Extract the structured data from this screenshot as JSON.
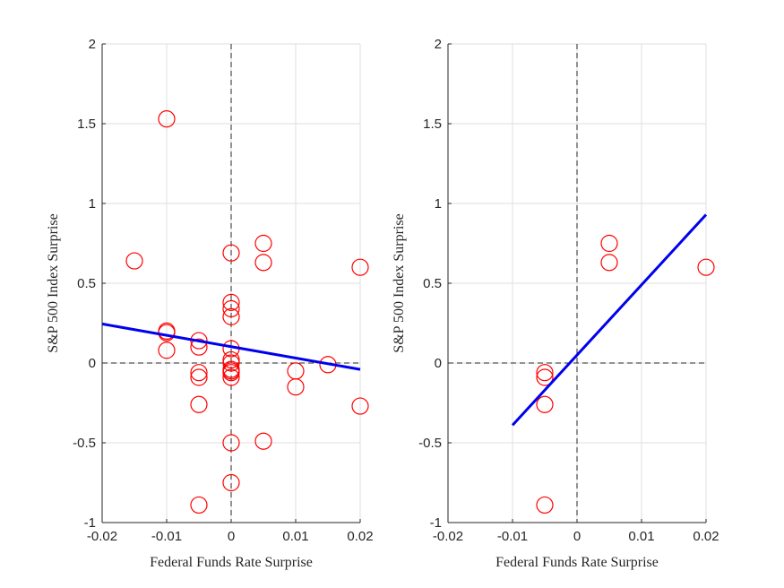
{
  "chart_data": [
    {
      "type": "scatter",
      "xlabel": "Federal Funds Rate Surprise",
      "ylabel": "S&P 500 Index Surprise",
      "xlim": [
        -0.02,
        0.02
      ],
      "ylim": [
        -1,
        2
      ],
      "xticks": [
        -0.02,
        -0.01,
        0,
        0.01,
        0.02
      ],
      "xtick_labels": [
        "-0.02",
        "-0.01",
        "0",
        "0.01",
        "0.02"
      ],
      "yticks": [
        -1,
        -0.5,
        0,
        0.5,
        1,
        1.5,
        2
      ],
      "ytick_labels": [
        "-1",
        "-0.5",
        "0",
        "0.5",
        "1",
        "1.5",
        "2"
      ],
      "grid": true,
      "zero_lines": true,
      "series": [
        {
          "kind": "markers",
          "marker": "circle",
          "color": "#ff0000",
          "x": [
            -0.015,
            -0.01,
            -0.01,
            -0.01,
            -0.01,
            -0.005,
            -0.005,
            -0.005,
            -0.005,
            -0.005,
            0,
            0,
            0,
            0,
            0,
            0,
            0,
            0,
            0,
            0,
            0,
            0,
            0.005,
            0.005,
            0.005,
            0.01,
            0.01,
            0.015,
            0.02,
            0.02,
            -0.005,
            0
          ],
          "y": [
            0.64,
            1.53,
            0.2,
            0.19,
            0.08,
            0.14,
            0.1,
            -0.06,
            -0.09,
            -0.26,
            0.69,
            0.38,
            0.34,
            0.29,
            0.09,
            0.02,
            -0.04,
            -0.06,
            -0.09,
            -0.5,
            -0.75,
            -0.05,
            0.75,
            0.63,
            -0.49,
            -0.05,
            -0.15,
            -0.01,
            0.6,
            -0.27,
            -0.89,
            0.0
          ]
        },
        {
          "kind": "line",
          "color": "#0000ee",
          "x": [
            -0.02,
            0.02
          ],
          "y": [
            0.245,
            -0.04
          ]
        }
      ]
    },
    {
      "type": "scatter",
      "xlabel": "Federal Funds Rate Surprise",
      "ylabel": "S&P 500 Index Surprise",
      "xlim": [
        -0.02,
        0.02
      ],
      "ylim": [
        -1,
        2
      ],
      "xticks": [
        -0.02,
        -0.01,
        0,
        0.01,
        0.02
      ],
      "xtick_labels": [
        "-0.02",
        "-0.01",
        "0",
        "0.01",
        "0.02"
      ],
      "yticks": [
        -1,
        -0.5,
        0,
        0.5,
        1,
        1.5,
        2
      ],
      "ytick_labels": [
        "-1",
        "-0.5",
        "0",
        "0.5",
        "1",
        "1.5",
        "2"
      ],
      "grid": true,
      "zero_lines": true,
      "series": [
        {
          "kind": "markers",
          "marker": "circle",
          "color": "#ff0000",
          "x": [
            -0.005,
            -0.005,
            -0.005,
            -0.005,
            0.005,
            0.005,
            0.02
          ],
          "y": [
            -0.06,
            -0.09,
            -0.26,
            -0.89,
            0.75,
            0.63,
            0.6
          ]
        },
        {
          "kind": "line",
          "color": "#0000ee",
          "x": [
            -0.01,
            0.02
          ],
          "y": [
            -0.39,
            0.93
          ]
        }
      ]
    }
  ]
}
